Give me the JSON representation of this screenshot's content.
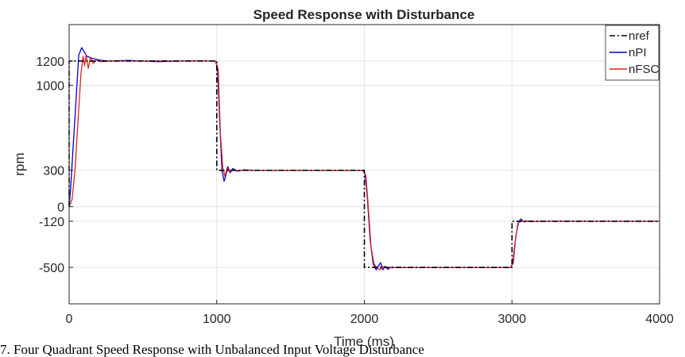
{
  "chart_data": {
    "type": "line",
    "title": "Speed Response with Disturbance",
    "xlabel": "Time (ms)",
    "ylabel": "rpm",
    "xlim": [
      0,
      4000
    ],
    "ylim": [
      -800,
      1500
    ],
    "xticks": [
      0,
      1000,
      2000,
      3000,
      4000
    ],
    "yticks": [
      -500,
      -120,
      0,
      300,
      1000,
      1200
    ],
    "grid": true,
    "legend_position": "top-right",
    "series": [
      {
        "name": "nref",
        "color": "#000000",
        "style": "dashdot",
        "x": [
          0,
          0,
          1000,
          1000,
          2000,
          2000,
          3000,
          3000,
          4000
        ],
        "y": [
          0,
          1200,
          1200,
          300,
          300,
          -500,
          -500,
          -120,
          -120
        ]
      },
      {
        "name": "nPI",
        "color": "#0000cc",
        "style": "solid",
        "x": [
          0,
          10,
          25,
          45,
          65,
          85,
          100,
          120,
          150,
          180,
          220,
          260,
          400,
          600,
          800,
          990,
          1005,
          1020,
          1035,
          1050,
          1060,
          1075,
          1090,
          1110,
          1140,
          1180,
          1250,
          1500,
          1800,
          1990,
          2005,
          2020,
          2040,
          2060,
          2080,
          2095,
          2110,
          2125,
          2140,
          2160,
          2180,
          2220,
          2300,
          2600,
          2990,
          3005,
          3020,
          3040,
          3060,
          3080,
          3100,
          3140,
          3200,
          3500,
          4000
        ],
        "y": [
          0,
          150,
          450,
          850,
          1250,
          1310,
          1280,
          1240,
          1225,
          1215,
          1205,
          1200,
          1205,
          1195,
          1202,
          1200,
          1150,
          700,
          300,
          210,
          250,
          330,
          280,
          315,
          292,
          303,
          300,
          300,
          300,
          300,
          270,
          80,
          -280,
          -470,
          -520,
          -490,
          -460,
          -520,
          -490,
          -515,
          -498,
          -502,
          -500,
          -500,
          -500,
          -470,
          -300,
          -140,
          -100,
          -125,
          -118,
          -121,
          -120,
          -120,
          -120
        ]
      },
      {
        "name": "nFSC",
        "color": "#dd2222",
        "style": "solid",
        "x": [
          0,
          20,
          40,
          60,
          80,
          95,
          105,
          115,
          130,
          145,
          165,
          185,
          210,
          300,
          600,
          990,
          1010,
          1025,
          1040,
          1055,
          1070,
          1085,
          1100,
          1130,
          1200,
          1500,
          1990,
          2010,
          2025,
          2045,
          2065,
          2085,
          2105,
          2125,
          2150,
          2200,
          2500,
          2990,
          3010,
          3025,
          3045,
          3065,
          3100,
          3200,
          3600,
          4000
        ],
        "y": [
          0,
          60,
          300,
          700,
          1100,
          1240,
          1160,
          1250,
          1140,
          1230,
          1180,
          1210,
          1195,
          1200,
          1200,
          1200,
          1130,
          600,
          330,
          250,
          320,
          290,
          305,
          298,
          300,
          300,
          300,
          260,
          30,
          -330,
          -470,
          -500,
          -520,
          -492,
          -505,
          -500,
          -500,
          -500,
          -460,
          -250,
          -130,
          -115,
          -122,
          -120,
          -120,
          -120
        ]
      }
    ]
  },
  "caption": "7. Four Quadrant Speed Response with Unbalanced Input Voltage Disturbance"
}
